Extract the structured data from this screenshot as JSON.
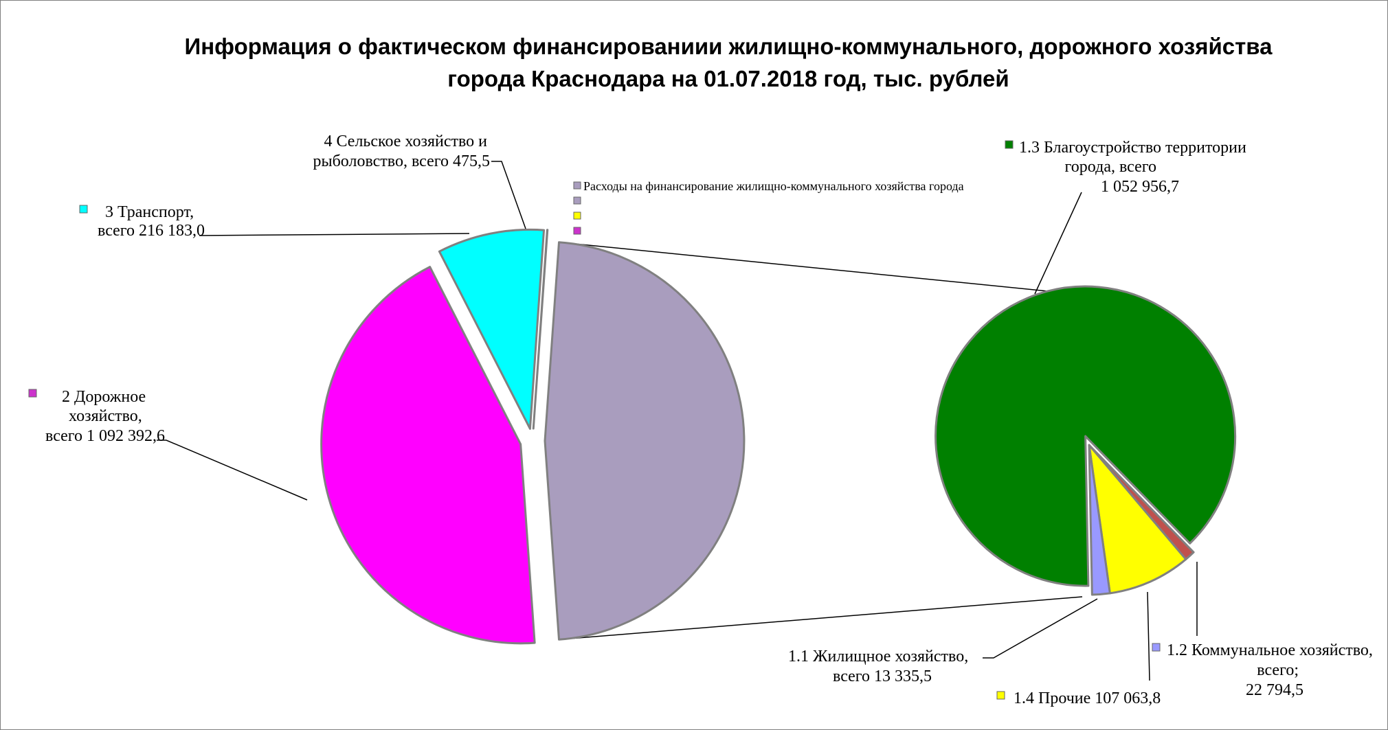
{
  "title_lines": [
    "Информация о фактическом финансированиии жилищно-коммунального, дорожного  хозяйства",
    "города Краснодара на 01.07.2018 год, тыс. рублей"
  ],
  "legend": {
    "entries": [
      {
        "label": "Расходы на финансирование  жилищно-коммунального   хозяйства города",
        "color": "#a99dbe"
      },
      {
        "label": "",
        "color": "#a99dbe"
      },
      {
        "label": "",
        "color": "#ffff00"
      },
      {
        "label": "",
        "color": "#cc33cc"
      }
    ]
  },
  "chart_data": {
    "type": "pie",
    "subtype": "pie-of-pie",
    "title": "Информация о фактическом финансированиии жилищно-коммунального, дорожного  хозяйства города Краснодара на 01.07.2018 год, тыс. рублей",
    "primary": {
      "slices": [
        {
          "key": "zhkh",
          "label": "Расходы на финансирование  жилищно-коммунального   хозяйства города",
          "value": 1196150.5,
          "color": "#a99dbe",
          "label_lines": []
        },
        {
          "key": "road",
          "label": "2 Дорожное хозяйство, всего 1 092 392,6",
          "value": 1092392.6,
          "color": "#ff00ff",
          "label_lines": [
            "2 Дорожное",
            "хозяйство,",
            "всего 1 092 392,6"
          ]
        },
        {
          "key": "transport",
          "label": "3 Транспорт, всего 216 183,0",
          "value": 216183.0,
          "color": "#00ffff",
          "label_lines": [
            "3 Транспорт,",
            "всего 216 183,0"
          ]
        },
        {
          "key": "agri",
          "label": "4 Сельское хозяйство и рыболовство, всего 475,5",
          "value": 475.5,
          "color": "#ffffff",
          "label_lines": [
            "4 Сельское хозяйство и",
            "рыболовство, всего 475,5"
          ]
        }
      ]
    },
    "secondary": {
      "parent": "zhkh",
      "slices": [
        {
          "key": "housing",
          "label": "1.1 Жилищное хозяйство, всего 13 335,5",
          "value": 13335.5,
          "color": "#c0504d",
          "label_lines": [
            "1.1 Жилищное хозяйство,",
            "всего 13 335,5"
          ]
        },
        {
          "key": "other",
          "label": "1.4 Прочие 107 063,8",
          "value": 107063.8,
          "color": "#ffff00",
          "label_lines": [
            "1.4 Прочие 107 063,8"
          ]
        },
        {
          "key": "communal",
          "label": "1.2 Коммунальное хозяйство, всего; 22 794,5",
          "value": 22794.5,
          "color": "#9999ff",
          "label_lines": [
            "1.2 Коммунальное хозяйство,",
            "всего;",
            "22 794,5"
          ]
        },
        {
          "key": "improve",
          "label": "1.3 Благоустройство территории города, всего 1 052 956,7",
          "value": 1052956.7,
          "color": "#008000",
          "label_lines": [
            "1.3 Благоустройство территории",
            "города, всего",
            "1 052 956,7"
          ]
        }
      ]
    }
  }
}
